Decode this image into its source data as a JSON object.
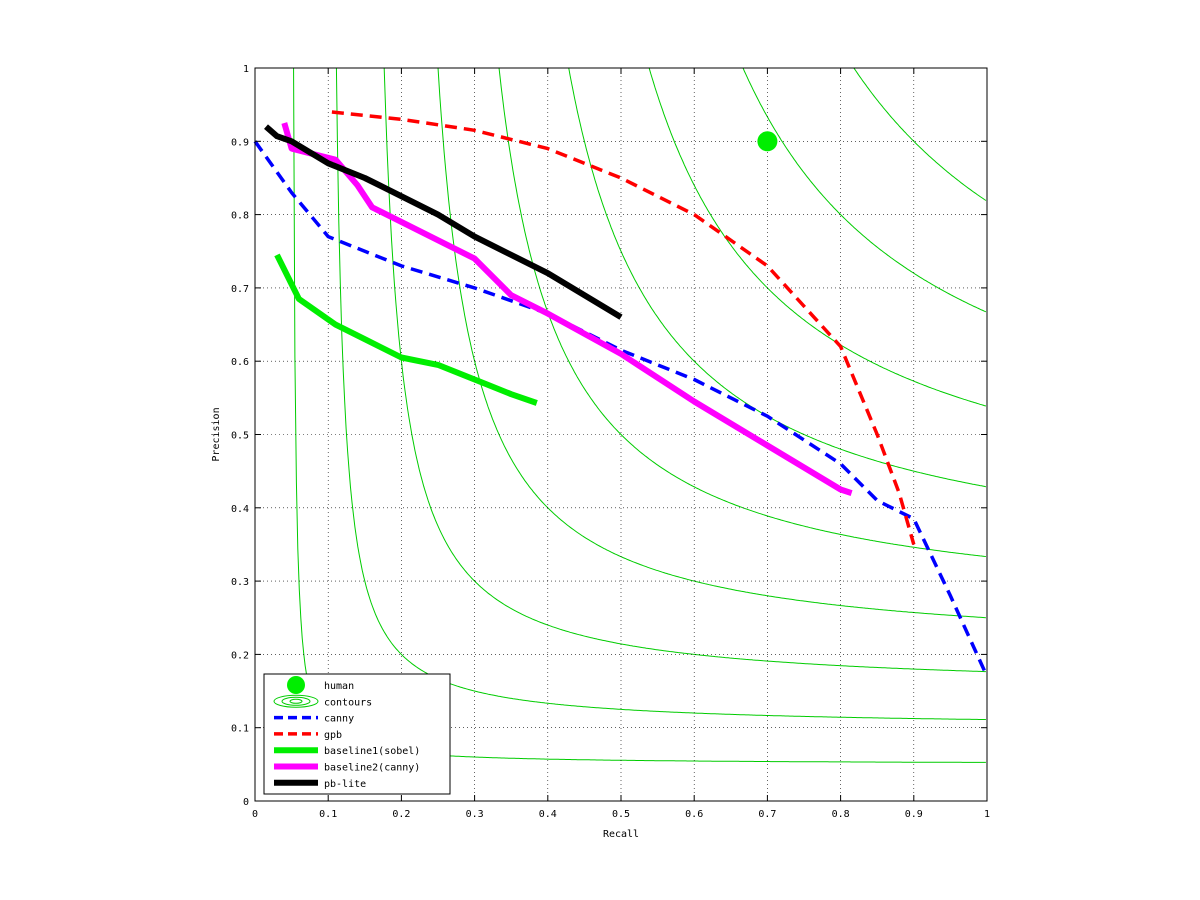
{
  "chart_data": {
    "type": "line",
    "title": "",
    "xlabel": "Recall",
    "ylabel": "Precision",
    "xlim": [
      0,
      1
    ],
    "ylim": [
      0,
      1
    ],
    "grid": true,
    "legend_position": "bottom-left",
    "x_ticks": [
      "0",
      "0.1",
      "0.2",
      "0.3",
      "0.4",
      "0.5",
      "0.6",
      "0.7",
      "0.8",
      "0.9",
      "1"
    ],
    "y_ticks": [
      "0",
      "0.1",
      "0.2",
      "0.3",
      "0.4",
      "0.5",
      "0.6",
      "0.7",
      "0.8",
      "0.9",
      "1"
    ],
    "contour_levels": [
      0.1,
      0.2,
      0.3,
      0.4,
      0.5,
      0.6,
      0.7,
      0.8,
      0.9
    ],
    "human": {
      "name": "human",
      "x": 0.7,
      "y": 0.9,
      "color": "#00ee00"
    },
    "contours_legend": {
      "name": "contours",
      "color": "#00cc00"
    },
    "series": [
      {
        "name": "canny",
        "color": "#0000ff",
        "style": "dashed",
        "points": [
          [
            0.0,
            0.9
          ],
          [
            0.05,
            0.83
          ],
          [
            0.1,
            0.77
          ],
          [
            0.15,
            0.75
          ],
          [
            0.2,
            0.73
          ],
          [
            0.3,
            0.7
          ],
          [
            0.4,
            0.665
          ],
          [
            0.5,
            0.615
          ],
          [
            0.6,
            0.575
          ],
          [
            0.7,
            0.525
          ],
          [
            0.8,
            0.46
          ],
          [
            0.85,
            0.41
          ],
          [
            0.9,
            0.385
          ],
          [
            0.95,
            0.28
          ],
          [
            1.0,
            0.17
          ]
        ]
      },
      {
        "name": "gpb",
        "color": "#ff0000",
        "style": "dashed",
        "points": [
          [
            0.105,
            0.94
          ],
          [
            0.2,
            0.93
          ],
          [
            0.3,
            0.915
          ],
          [
            0.4,
            0.89
          ],
          [
            0.5,
            0.85
          ],
          [
            0.6,
            0.8
          ],
          [
            0.7,
            0.73
          ],
          [
            0.8,
            0.62
          ],
          [
            0.85,
            0.5
          ],
          [
            0.88,
            0.42
          ],
          [
            0.9,
            0.35
          ]
        ]
      },
      {
        "name": "baseline1(sobel)",
        "color": "#00ee00",
        "style": "solid",
        "points": [
          [
            0.03,
            0.745
          ],
          [
            0.06,
            0.685
          ],
          [
            0.11,
            0.65
          ],
          [
            0.15,
            0.63
          ],
          [
            0.2,
            0.605
          ],
          [
            0.25,
            0.595
          ],
          [
            0.3,
            0.575
          ],
          [
            0.35,
            0.555
          ],
          [
            0.385,
            0.543
          ]
        ]
      },
      {
        "name": "baseline2(canny)",
        "color": "#ff00ff",
        "style": "solid",
        "points": [
          [
            0.04,
            0.925
          ],
          [
            0.05,
            0.89
          ],
          [
            0.07,
            0.885
          ],
          [
            0.11,
            0.875
          ],
          [
            0.14,
            0.84
          ],
          [
            0.16,
            0.81
          ],
          [
            0.2,
            0.79
          ],
          [
            0.3,
            0.74
          ],
          [
            0.35,
            0.69
          ],
          [
            0.4,
            0.665
          ],
          [
            0.5,
            0.61
          ],
          [
            0.6,
            0.545
          ],
          [
            0.7,
            0.485
          ],
          [
            0.8,
            0.425
          ],
          [
            0.815,
            0.42
          ]
        ]
      },
      {
        "name": "pb-lite",
        "color": "#000000",
        "style": "solid",
        "points": [
          [
            0.015,
            0.92
          ],
          [
            0.03,
            0.907
          ],
          [
            0.05,
            0.9
          ],
          [
            0.1,
            0.87
          ],
          [
            0.15,
            0.85
          ],
          [
            0.18,
            0.835
          ],
          [
            0.25,
            0.8
          ],
          [
            0.3,
            0.77
          ],
          [
            0.4,
            0.72
          ],
          [
            0.5,
            0.66
          ]
        ]
      }
    ]
  }
}
